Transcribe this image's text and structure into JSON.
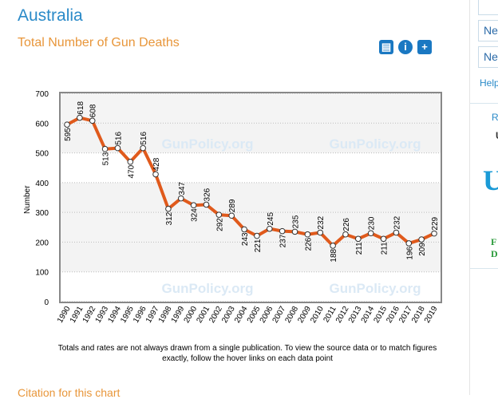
{
  "header": {
    "country": "Australia",
    "subtitle": "Total Number of Gun Deaths"
  },
  "toolbar": {
    "print_icon": "printer-icon",
    "info_icon": "info-icon",
    "add_icon": "plus-icon",
    "info_glyph": "i",
    "add_glyph": "+"
  },
  "sidebar": {
    "items": [
      "Ne",
      "Ne"
    ],
    "help": "Help",
    "r1": "Re",
    "r2": "U",
    "r3": "U",
    "r4": "F",
    "r5": "D"
  },
  "chart_data": {
    "type": "line",
    "title": "Total Number of Gun Deaths",
    "xlabel": "",
    "ylabel": "Number",
    "ylim": [
      0,
      700
    ],
    "yticks": [
      0,
      100,
      200,
      300,
      400,
      500,
      600,
      700
    ],
    "x": [
      "1990",
      "1991",
      "1992",
      "1993",
      "1994",
      "1995",
      "1996",
      "1997",
      "1998",
      "1999",
      "2000",
      "2001",
      "2002",
      "2003",
      "2004",
      "2005",
      "2006",
      "2007",
      "2008",
      "2009",
      "2010",
      "2011",
      "2012",
      "2013",
      "2014",
      "2015",
      "2016",
      "2017",
      "2018",
      "2019"
    ],
    "values": [
      595,
      618,
      608,
      513,
      516,
      470,
      516,
      428,
      312,
      347,
      324,
      326,
      292,
      289,
      243,
      221,
      245,
      237,
      235,
      226,
      232,
      188,
      226,
      211,
      230,
      211,
      232,
      196,
      209,
      229
    ],
    "watermark": "GunPolicy.org",
    "line_color": "#e05a1c",
    "grid": true
  },
  "note": "Totals and rates are not always drawn from a single publication. To view the source data or to match figures exactly, follow the hover links on each data point",
  "citation": "Citation for this chart"
}
